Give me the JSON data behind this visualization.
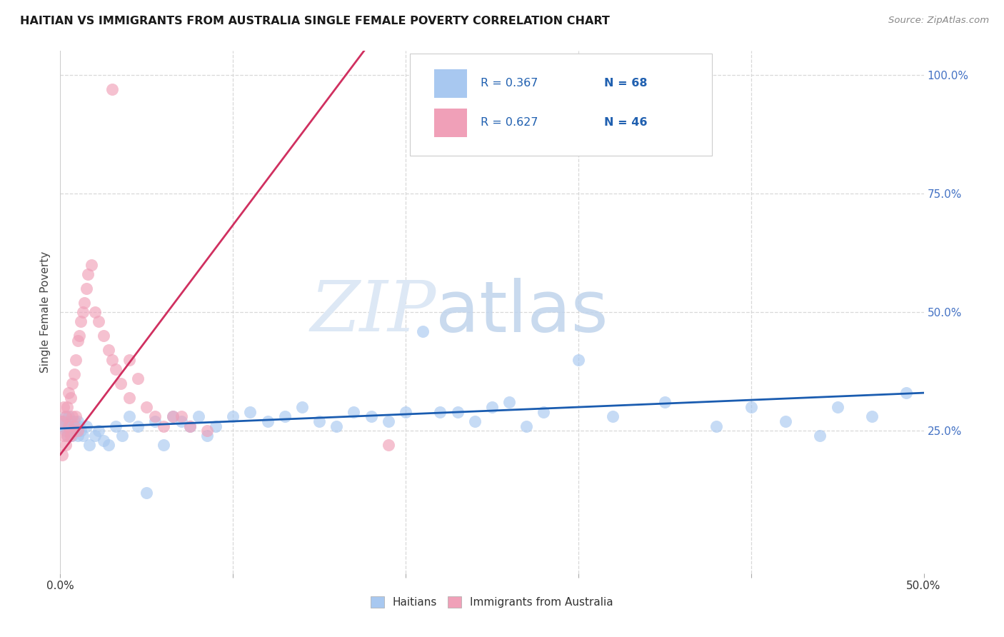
{
  "title": "HAITIAN VS IMMIGRANTS FROM AUSTRALIA SINGLE FEMALE POVERTY CORRELATION CHART",
  "source": "Source: ZipAtlas.com",
  "ylabel": "Single Female Poverty",
  "xlim": [
    0.0,
    0.5
  ],
  "ylim": [
    -0.05,
    1.05
  ],
  "background_color": "#ffffff",
  "grid_color": "#d8d8d8",
  "blue_color": "#a8c8f0",
  "pink_color": "#f0a0b8",
  "blue_line_color": "#1a5cb0",
  "pink_line_color": "#d03060",
  "legend_blue_label": "Haitians",
  "legend_pink_label": "Immigrants from Australia",
  "r_blue": 0.367,
  "n_blue": 68,
  "r_pink": 0.627,
  "n_pink": 46,
  "blue_x": [
    0.001,
    0.002,
    0.003,
    0.003,
    0.004,
    0.004,
    0.005,
    0.005,
    0.006,
    0.006,
    0.007,
    0.007,
    0.008,
    0.008,
    0.009,
    0.01,
    0.01,
    0.011,
    0.012,
    0.013,
    0.015,
    0.017,
    0.02,
    0.022,
    0.025,
    0.028,
    0.032,
    0.036,
    0.04,
    0.045,
    0.05,
    0.055,
    0.06,
    0.065,
    0.07,
    0.075,
    0.08,
    0.085,
    0.09,
    0.1,
    0.11,
    0.12,
    0.13,
    0.14,
    0.15,
    0.16,
    0.17,
    0.18,
    0.19,
    0.2,
    0.21,
    0.22,
    0.23,
    0.24,
    0.25,
    0.26,
    0.27,
    0.28,
    0.3,
    0.32,
    0.35,
    0.38,
    0.4,
    0.42,
    0.44,
    0.45,
    0.47,
    0.49
  ],
  "blue_y": [
    0.27,
    0.26,
    0.28,
    0.25,
    0.27,
    0.24,
    0.26,
    0.28,
    0.25,
    0.27,
    0.26,
    0.24,
    0.27,
    0.25,
    0.26,
    0.27,
    0.24,
    0.26,
    0.25,
    0.24,
    0.26,
    0.22,
    0.24,
    0.25,
    0.23,
    0.22,
    0.26,
    0.24,
    0.28,
    0.26,
    0.12,
    0.27,
    0.22,
    0.28,
    0.27,
    0.26,
    0.28,
    0.24,
    0.26,
    0.28,
    0.29,
    0.27,
    0.28,
    0.3,
    0.27,
    0.26,
    0.29,
    0.28,
    0.27,
    0.29,
    0.46,
    0.29,
    0.29,
    0.27,
    0.3,
    0.31,
    0.26,
    0.29,
    0.4,
    0.28,
    0.31,
    0.26,
    0.3,
    0.27,
    0.24,
    0.3,
    0.28,
    0.33
  ],
  "pink_x": [
    0.001,
    0.001,
    0.002,
    0.002,
    0.003,
    0.003,
    0.004,
    0.004,
    0.005,
    0.005,
    0.006,
    0.006,
    0.007,
    0.007,
    0.008,
    0.008,
    0.009,
    0.009,
    0.01,
    0.01,
    0.011,
    0.012,
    0.013,
    0.014,
    0.015,
    0.016,
    0.018,
    0.02,
    0.022,
    0.025,
    0.028,
    0.03,
    0.03,
    0.032,
    0.035,
    0.04,
    0.04,
    0.045,
    0.05,
    0.055,
    0.06,
    0.065,
    0.07,
    0.075,
    0.085,
    0.19
  ],
  "pink_y": [
    0.2,
    0.27,
    0.24,
    0.3,
    0.22,
    0.28,
    0.24,
    0.3,
    0.26,
    0.33,
    0.24,
    0.32,
    0.28,
    0.35,
    0.26,
    0.37,
    0.28,
    0.4,
    0.25,
    0.44,
    0.45,
    0.48,
    0.5,
    0.52,
    0.55,
    0.58,
    0.6,
    0.5,
    0.48,
    0.45,
    0.42,
    0.4,
    0.97,
    0.38,
    0.35,
    0.32,
    0.4,
    0.36,
    0.3,
    0.28,
    0.26,
    0.28,
    0.28,
    0.26,
    0.25,
    0.22
  ]
}
